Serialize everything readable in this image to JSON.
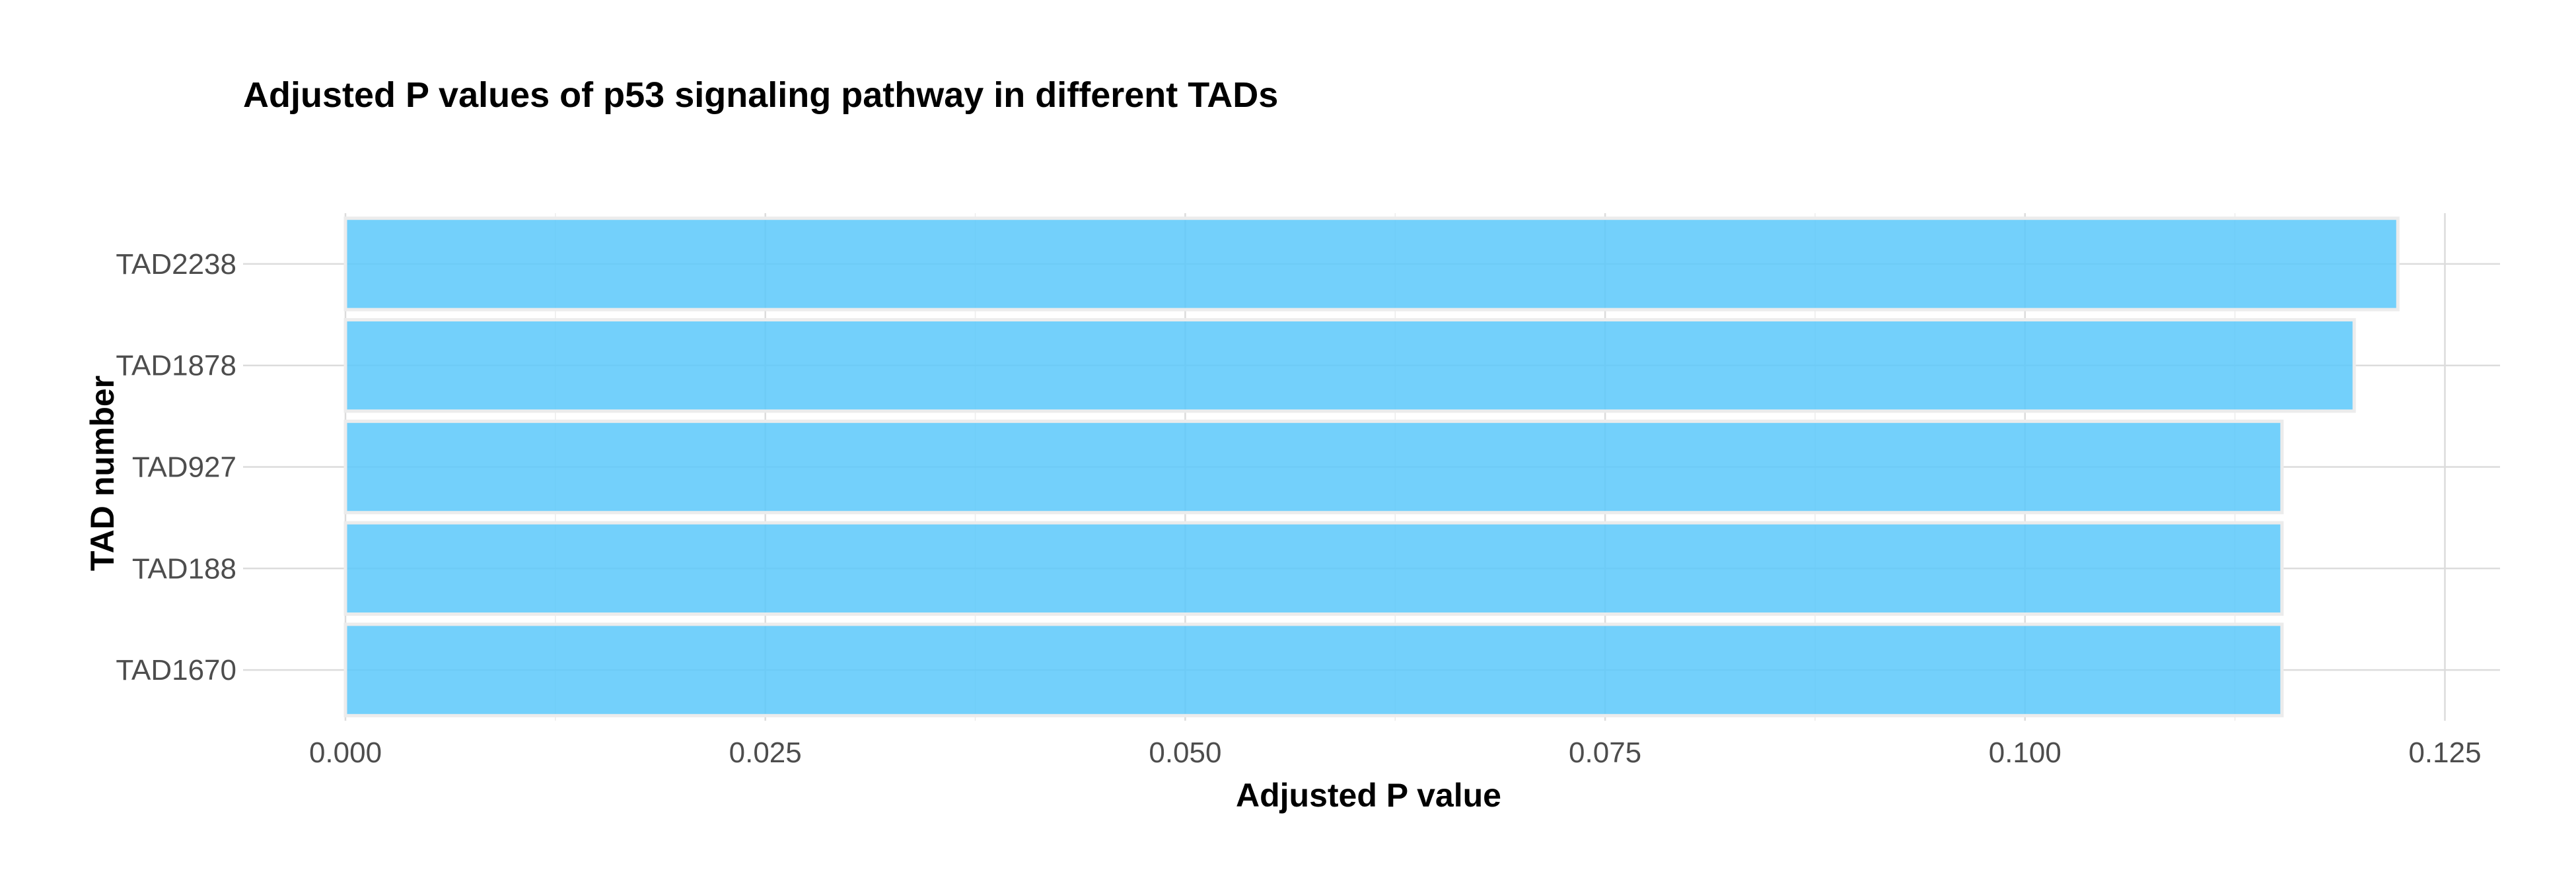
{
  "chart_data": {
    "type": "bar",
    "orientation": "horizontal",
    "title": "Adjusted P values of p53 signaling pathway in different TADs",
    "xlabel": "Adjusted P value",
    "ylabel": "TAD number",
    "categories": [
      "TAD2238",
      "TAD1878",
      "TAD927",
      "TAD188",
      "TAD1670"
    ],
    "values": [
      0.1222,
      0.1196,
      0.1153,
      0.1153,
      0.1153
    ],
    "xlim": [
      0,
      0.128
    ],
    "x_ticks": [
      0,
      0.025,
      0.05,
      0.075,
      0.1,
      0.125
    ],
    "x_tick_labels": [
      "0.000",
      "0.025",
      "0.050",
      "0.075",
      "0.100",
      "0.125"
    ],
    "bar_color": "#5BC8FA",
    "grid": true,
    "legend": "none"
  }
}
